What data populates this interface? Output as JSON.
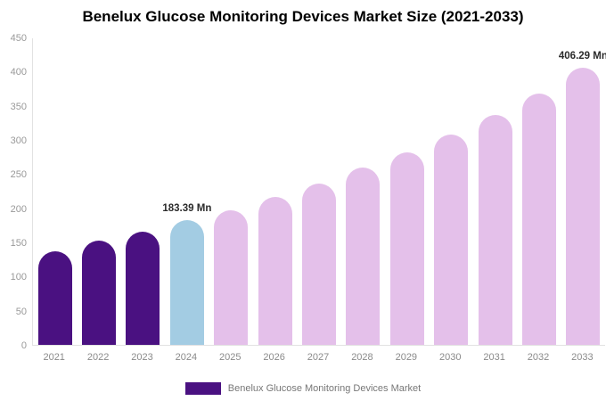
{
  "title": "Benelux Glucose Monitoring Devices Market Size (2021-2033)",
  "legend": {
    "label": "Benelux Glucose Monitoring Devices Market",
    "swatch_color": "#4a1181"
  },
  "colors": {
    "historical_bar": "#4a1181",
    "highlight_bar": "#a3cce3",
    "forecast_bar": "#e4c0ea",
    "axis_line": "#e2e2e2",
    "tick_label": "#999999",
    "data_label": "#2b2b2b",
    "legend_text": "#777777",
    "title_text": "#000000",
    "background": "#ffffff"
  },
  "chart_data": {
    "type": "bar",
    "title": "Benelux Glucose Monitoring Devices Market Size (2021-2033)",
    "series_name": "Benelux Glucose Monitoring Devices Market",
    "categories": [
      "2021",
      "2022",
      "2023",
      "2024",
      "2025",
      "2026",
      "2027",
      "2028",
      "2029",
      "2030",
      "2031",
      "2032",
      "2033"
    ],
    "values": [
      138,
      153,
      166,
      183.39,
      197,
      217,
      237,
      260,
      283,
      309,
      338,
      369,
      406.29
    ],
    "bar_colors": [
      "#4a1181",
      "#4a1181",
      "#4a1181",
      "#a3cce3",
      "#e4c0ea",
      "#e4c0ea",
      "#e4c0ea",
      "#e4c0ea",
      "#e4c0ea",
      "#e4c0ea",
      "#e4c0ea",
      "#e4c0ea",
      "#e4c0ea"
    ],
    "data_labels": {
      "2024": "183.39 Mn",
      "2033": "406.29 Mn"
    },
    "unit": "Mn",
    "xlabel": "",
    "ylabel": "",
    "ylim": [
      0,
      450
    ],
    "yticks": [
      0,
      50,
      100,
      150,
      200,
      250,
      300,
      350,
      400,
      450
    ],
    "grid": false,
    "legend_position": "bottom"
  }
}
